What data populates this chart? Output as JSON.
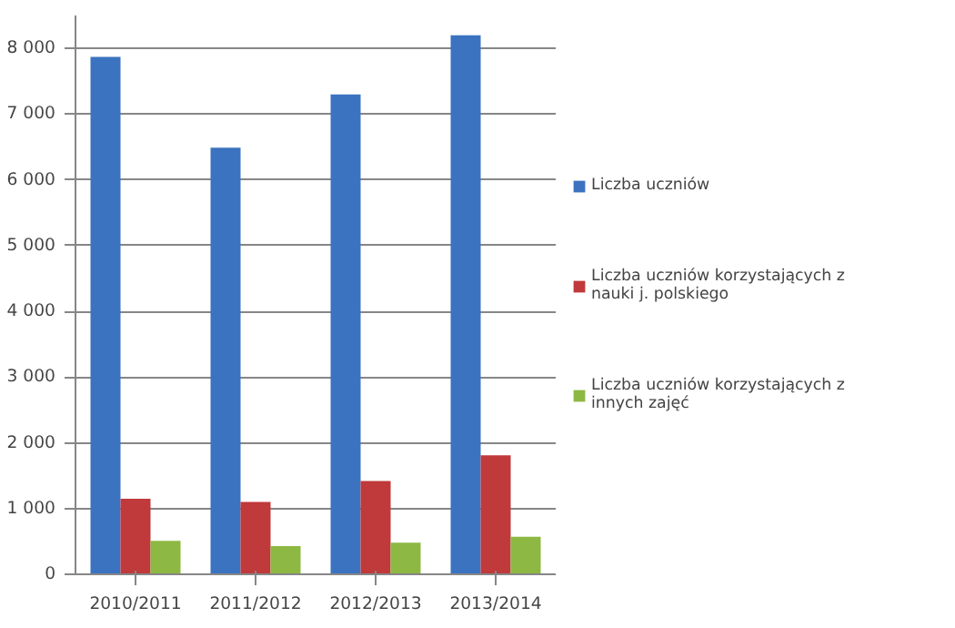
{
  "chart_data": {
    "type": "bar",
    "categories": [
      "2010/2011",
      "2011/2012",
      "2012/2013",
      "2013/2014"
    ],
    "series": [
      {
        "name": "Liczba uczniów",
        "color": "#3b73c0",
        "values": [
          7870,
          6490,
          7300,
          8200
        ]
      },
      {
        "name": "Liczba uczniów korzystających z nauki j. polskiego",
        "color": "#c0393b",
        "values": [
          1150,
          1100,
          1420,
          1810
        ]
      },
      {
        "name": "Liczba uczniów korzystających z innych zajęć",
        "color": "#8db843",
        "values": [
          510,
          430,
          480,
          570
        ]
      }
    ],
    "ylim": [
      0,
      8500
    ],
    "yticks": [
      {
        "value": 0,
        "label": "0"
      },
      {
        "value": 1000,
        "label": "1 000"
      },
      {
        "value": 2000,
        "label": "2 000"
      },
      {
        "value": 3000,
        "label": "3 000"
      },
      {
        "value": 4000,
        "label": "4 000"
      },
      {
        "value": 5000,
        "label": "5 000"
      },
      {
        "value": 6000,
        "label": "6 000"
      },
      {
        "value": 7000,
        "label": "7 000"
      },
      {
        "value": 8000,
        "label": "8 000"
      }
    ],
    "grid": "y",
    "legend": "right"
  }
}
